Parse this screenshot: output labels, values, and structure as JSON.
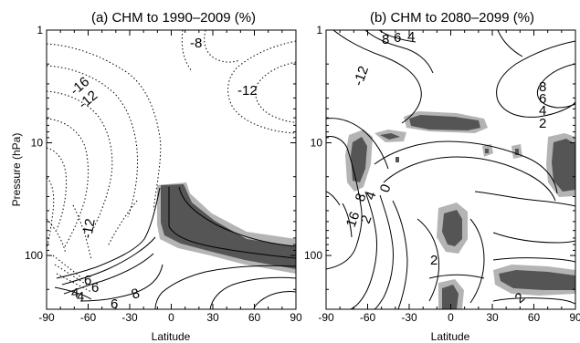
{
  "chart_data": [
    {
      "type": "contour",
      "title": "(a) CHM to 1990–2009 (%)",
      "xlabel": "Latitude",
      "ylabel": "Pressure (hPa)",
      "xlim": [
        -90,
        90
      ],
      "ylim_hPa": [
        1,
        300
      ],
      "y_scale": "log",
      "y_reversed": true,
      "x_ticks": [
        "-90",
        "-60",
        "-30",
        "0",
        "30",
        "60",
        "90"
      ],
      "y_ticks": [
        "1",
        "10",
        "100"
      ],
      "contour_labels": [
        "-8",
        "-16",
        "-12",
        "-12",
        "-12",
        "6",
        "4",
        "6",
        "8",
        "6",
        "4"
      ],
      "negative_contours": "dotted",
      "shading": "dark grey = significant, light grey = weaker significance",
      "colors": {
        "shade_dark": "#555555",
        "shade_light": "#b4b4b4"
      }
    },
    {
      "type": "contour",
      "title": "(b) CHM to 2080–2099 (%)",
      "xlabel": "Latitude",
      "ylabel": "",
      "xlim": [
        -90,
        90
      ],
      "ylim_hPa": [
        1,
        300
      ],
      "y_scale": "log",
      "y_reversed": true,
      "x_ticks": [
        "-90",
        "-60",
        "-30",
        "0",
        "30",
        "60",
        "90"
      ],
      "y_ticks": [
        "1",
        "10",
        "100"
      ],
      "contour_labels": [
        "8",
        "6",
        "4",
        "-12",
        "8",
        "6",
        "4",
        "2",
        "0",
        "8",
        "4",
        "16",
        "2",
        "2",
        "2"
      ],
      "negative_contours": "dotted",
      "shading": "dark grey = significant, light grey = weaker significance",
      "colors": {
        "shade_dark": "#555555",
        "shade_light": "#b4b4b4"
      }
    }
  ]
}
